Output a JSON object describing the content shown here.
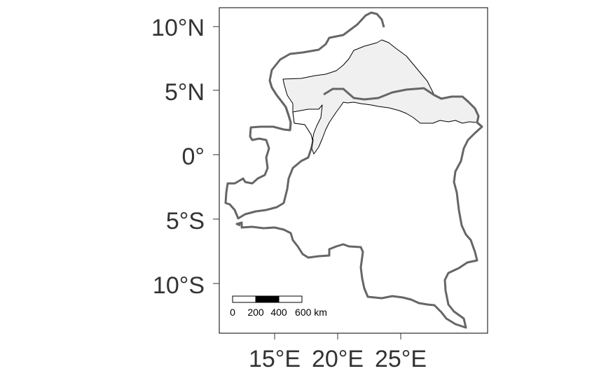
{
  "map": {
    "y_axis": {
      "ticks": [
        "10°N",
        "5°N",
        "0°",
        "5°S",
        "10°S"
      ]
    },
    "x_axis": {
      "ticks": [
        "15°E",
        "20°E",
        "25°E"
      ]
    },
    "scale_bar": {
      "labels": [
        "0",
        "200",
        "400",
        "600 km"
      ]
    },
    "colors": {
      "outline": "#666666",
      "region_fill": "#f0f0f0",
      "inner_border": "#000000",
      "frame": "#000000"
    }
  }
}
